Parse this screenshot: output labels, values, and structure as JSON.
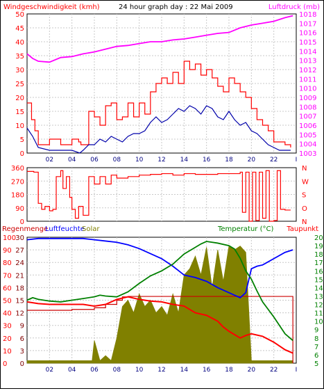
{
  "title": "24 hour graph day : 22 Mai 2009",
  "colors": {
    "wind": "#ff0000",
    "gust": "#ff0000",
    "pressure": "#ff00ff",
    "direction": "#ff0000",
    "humidity": "#0000ff",
    "temperature": "#008000",
    "dewpoint": "#ff0000",
    "rain": "#cc0000",
    "solar": "#808000",
    "left_axis_text": "#ff0000",
    "mid_axis_text": "#800000",
    "temp_axis_text": "#008000",
    "hour_text": "#000080"
  },
  "chart_data": [
    {
      "type": "line",
      "panel": "wind_pressure",
      "ylabel_left": "Windgeschwindigkeit (kmh)",
      "ylabel_right": "Luftdruck (mb)",
      "x_ticks": [
        "02",
        "04",
        "06",
        "08",
        "10",
        "12",
        "14",
        "16",
        "18",
        "20",
        "22"
      ],
      "x_end_tick": "I",
      "y_left_ticks": [
        "50",
        "45",
        "40",
        "35",
        "30",
        "25",
        "20",
        "15",
        "10",
        "5",
        "0"
      ],
      "y_right_ticks": [
        "1018",
        "1017",
        "1016",
        "1015",
        "1014",
        "1013",
        "1012",
        "1011",
        "1010",
        "1009",
        "1008",
        "1007",
        "1006",
        "1005",
        "1004",
        "1003"
      ],
      "ylim_left": [
        0,
        50
      ],
      "ylim_right": [
        1003,
        1018
      ],
      "series": [
        {
          "name": "gust",
          "axis": "left",
          "x": [
            0,
            0.4,
            0.7,
            1,
            1.5,
            2,
            3,
            4,
            4.6,
            4.8,
            5,
            5.5,
            6,
            6.5,
            7,
            7.5,
            8,
            8.5,
            9,
            9.5,
            10,
            10.5,
            11,
            11.5,
            12,
            12.5,
            13,
            13.5,
            14,
            14.5,
            15,
            15.5,
            16,
            16.5,
            17,
            17.5,
            18,
            18.5,
            19,
            19.5,
            20,
            20.5,
            21,
            21.5,
            22,
            22.5,
            23,
            23.5
          ],
          "values": [
            18,
            12,
            8,
            3,
            3,
            5,
            3,
            5,
            4,
            3,
            3,
            15,
            13,
            10,
            17,
            18,
            12,
            13,
            18,
            13,
            18,
            14,
            22,
            25,
            27,
            25,
            29,
            25,
            33,
            30,
            32,
            28,
            30,
            27,
            24,
            22,
            27,
            25,
            22,
            20,
            16,
            12,
            10,
            8,
            4,
            4,
            3,
            2
          ]
        },
        {
          "name": "wind",
          "axis": "left",
          "x": [
            0,
            0.5,
            1,
            2,
            3,
            4,
            4.7,
            5,
            5.5,
            6,
            6.5,
            7,
            7.5,
            8,
            8.5,
            9,
            9.5,
            10,
            10.5,
            11,
            11.5,
            12,
            12.5,
            13,
            13.5,
            14,
            14.5,
            15,
            15.5,
            16,
            16.5,
            17,
            17.5,
            18,
            18.5,
            19,
            19.5,
            20,
            20.5,
            21,
            21.5,
            22,
            22.5,
            23,
            23.5
          ],
          "values": [
            9,
            6,
            2,
            1,
            1,
            1,
            0,
            1,
            3,
            3,
            5,
            4,
            6,
            5,
            4,
            6,
            7,
            7,
            8,
            11,
            13,
            11,
            12,
            14,
            16,
            15,
            17,
            16,
            14,
            17,
            16,
            13,
            12,
            15,
            12,
            10,
            11,
            8,
            7,
            5,
            3,
            2,
            1,
            1,
            1
          ]
        },
        {
          "name": "pressure",
          "axis": "right",
          "x": [
            0,
            0.5,
            1,
            2,
            3,
            4,
            5,
            6,
            7,
            8,
            9,
            10,
            11,
            12,
            13,
            14,
            15,
            16,
            17,
            18,
            19,
            20,
            21,
            22,
            23,
            23.7
          ],
          "values": [
            1013.7,
            1013.2,
            1012.9,
            1012.8,
            1013.3,
            1013.4,
            1013.7,
            1013.9,
            1014.2,
            1014.5,
            1014.6,
            1014.8,
            1015.0,
            1015.0,
            1015.2,
            1015.3,
            1015.5,
            1015.7,
            1015.9,
            1016.0,
            1016.5,
            1016.8,
            1017.0,
            1017.2,
            1017.6,
            1017.8
          ]
        }
      ]
    },
    {
      "type": "line",
      "panel": "wind_direction",
      "x_ticks": [],
      "y_left_ticks": [
        "360",
        "270",
        "180",
        "90",
        "0"
      ],
      "y_right_ticks": [
        "N",
        "W",
        "S",
        "O",
        "N"
      ],
      "ylim": [
        0,
        360
      ],
      "series": [
        {
          "name": "direction",
          "x": [
            0,
            0.6,
            1,
            1.3,
            1.6,
            2,
            2.3,
            2.6,
            3,
            3.2,
            3.5,
            3.8,
            4,
            4.3,
            4.6,
            5,
            5.5,
            6,
            6.5,
            7,
            7.5,
            8,
            9,
            10,
            11,
            12,
            13,
            14,
            15,
            16,
            17,
            18,
            19,
            19.2,
            19.5,
            19.8,
            20.1,
            20.4,
            20.7,
            21,
            21.3,
            21.6,
            22,
            22.3,
            22.6,
            23,
            23.5
          ],
          "values": [
            335,
            330,
            120,
            80,
            100,
            70,
            80,
            300,
            340,
            220,
            300,
            160,
            80,
            20,
            100,
            40,
            300,
            250,
            300,
            250,
            310,
            290,
            300,
            310,
            315,
            320,
            310,
            320,
            315,
            315,
            320,
            320,
            330,
            60,
            330,
            0,
            330,
            5,
            330,
            20,
            340,
            0,
            5,
            340,
            80,
            75,
            75
          ]
        }
      ]
    },
    {
      "type": "line",
      "panel": "climate",
      "ylabel_left_1": "Regenmenge",
      "ylabel_left_2": "Luftfeuchte",
      "ylabel_solar": "Solar",
      "ylabel_right_1": "Temperatur (°C)",
      "ylabel_right_2": "Taupunkt",
      "x_ticks": [
        "02",
        "04",
        "06",
        "08",
        "10",
        "12",
        "14",
        "16",
        "18",
        "20",
        "22"
      ],
      "x_end_tick": "I",
      "y_rain_ticks": [
        "30",
        "27",
        "24",
        "21",
        "18",
        "15",
        "12",
        "9",
        "6",
        "3",
        "0"
      ],
      "y_humidity_ticks": [
        "100",
        "90",
        "80",
        "70",
        "60",
        "50",
        "40",
        "30",
        "20",
        "10",
        "0"
      ],
      "y_temp_ticks": [
        "20",
        "19",
        "18",
        "17",
        "16",
        "15",
        "14",
        "13",
        "12",
        "11",
        "10",
        "9",
        "8",
        "7",
        "6",
        "5"
      ],
      "ylim_rain": [
        0,
        30
      ],
      "ylim_humidity": [
        0,
        100
      ],
      "ylim_temp": [
        5,
        20
      ],
      "series": [
        {
          "name": "humidity",
          "axis": "humidity",
          "x": [
            0,
            1,
            2,
            3,
            4,
            5,
            6,
            7,
            8,
            9,
            10,
            11,
            12,
            13,
            14,
            15,
            16,
            17,
            18,
            18.5,
            19,
            19.5,
            20,
            20.5,
            21,
            22,
            23,
            23.7
          ],
          "values": [
            98,
            99,
            99,
            99,
            99,
            99,
            98,
            97,
            96,
            94,
            91,
            87,
            83,
            77,
            70,
            68,
            65,
            60,
            56,
            54,
            52,
            56,
            75,
            77,
            78,
            83,
            88,
            90
          ]
        },
        {
          "name": "temperature",
          "axis": "temp",
          "x": [
            0,
            0.5,
            1,
            2,
            3,
            4,
            5,
            6,
            6.5,
            7,
            8,
            9,
            10,
            11,
            12,
            13,
            14,
            15,
            15.5,
            16,
            17,
            18,
            18.5,
            19,
            19.5,
            20,
            20.5,
            21,
            22,
            23,
            23.7
          ],
          "values": [
            12.5,
            12.8,
            12.6,
            12.4,
            12.3,
            12.5,
            12.7,
            12.9,
            13.1,
            13.0,
            12.9,
            13.5,
            14.5,
            15.4,
            16.0,
            16.8,
            18.0,
            18.8,
            19.2,
            19.5,
            19.3,
            19.0,
            18.6,
            17.5,
            16.0,
            15.0,
            13.6,
            12.3,
            10.5,
            8.5,
            7.7
          ]
        },
        {
          "name": "dewpoint",
          "axis": "temp",
          "x": [
            0,
            1,
            2,
            3,
            4,
            5,
            6,
            7,
            8,
            9,
            10,
            11,
            12,
            13,
            14,
            15,
            16,
            17,
            17.5,
            18,
            18.5,
            19,
            19.5,
            20,
            21,
            22,
            23,
            23.7
          ],
          "values": [
            12.3,
            12.1,
            12.0,
            12.0,
            12.0,
            12.0,
            11.8,
            12.0,
            12.6,
            12.9,
            12.6,
            12.4,
            12.3,
            12.0,
            11.8,
            11.0,
            10.7,
            10.0,
            9.3,
            8.8,
            8.4,
            8.0,
            8.3,
            8.5,
            8.2,
            7.5,
            6.6,
            6.2
          ]
        },
        {
          "name": "rain",
          "axis": "rain",
          "x": [
            0,
            2,
            4,
            5,
            6,
            7,
            8,
            8.5,
            9,
            10,
            11,
            12,
            13,
            14,
            15,
            16,
            17,
            18,
            19,
            20,
            21,
            22,
            23,
            23.7
          ],
          "values": [
            12.6,
            12.6,
            12.8,
            12.8,
            13.2,
            14.0,
            15.0,
            15.8,
            15.9,
            15.9,
            15.9,
            15.9,
            15.9,
            15.9,
            15.9,
            15.9,
            15.9,
            15.9,
            15.9,
            15.9,
            15.9,
            15.9,
            15.9,
            0
          ]
        },
        {
          "name": "solar",
          "axis": "humidity",
          "x": [
            0,
            1,
            2,
            3,
            4,
            5,
            5.8,
            6,
            6.5,
            7,
            7.5,
            8,
            8.5,
            9,
            9.5,
            10,
            10.5,
            11,
            11.5,
            12,
            12.5,
            13,
            13.5,
            14,
            14.5,
            15,
            15.5,
            16,
            16.5,
            17,
            17.5,
            18,
            18.5,
            19,
            19.5,
            20,
            20.5,
            21,
            22,
            23,
            23.7
          ],
          "values": [
            2,
            2,
            2,
            2,
            2,
            2,
            2,
            18,
            2,
            6,
            2,
            20,
            45,
            50,
            40,
            55,
            45,
            50,
            40,
            45,
            38,
            55,
            40,
            70,
            75,
            85,
            70,
            92,
            60,
            90,
            65,
            93,
            90,
            93,
            88,
            2,
            2,
            2,
            2,
            2,
            2
          ]
        }
      ]
    }
  ]
}
